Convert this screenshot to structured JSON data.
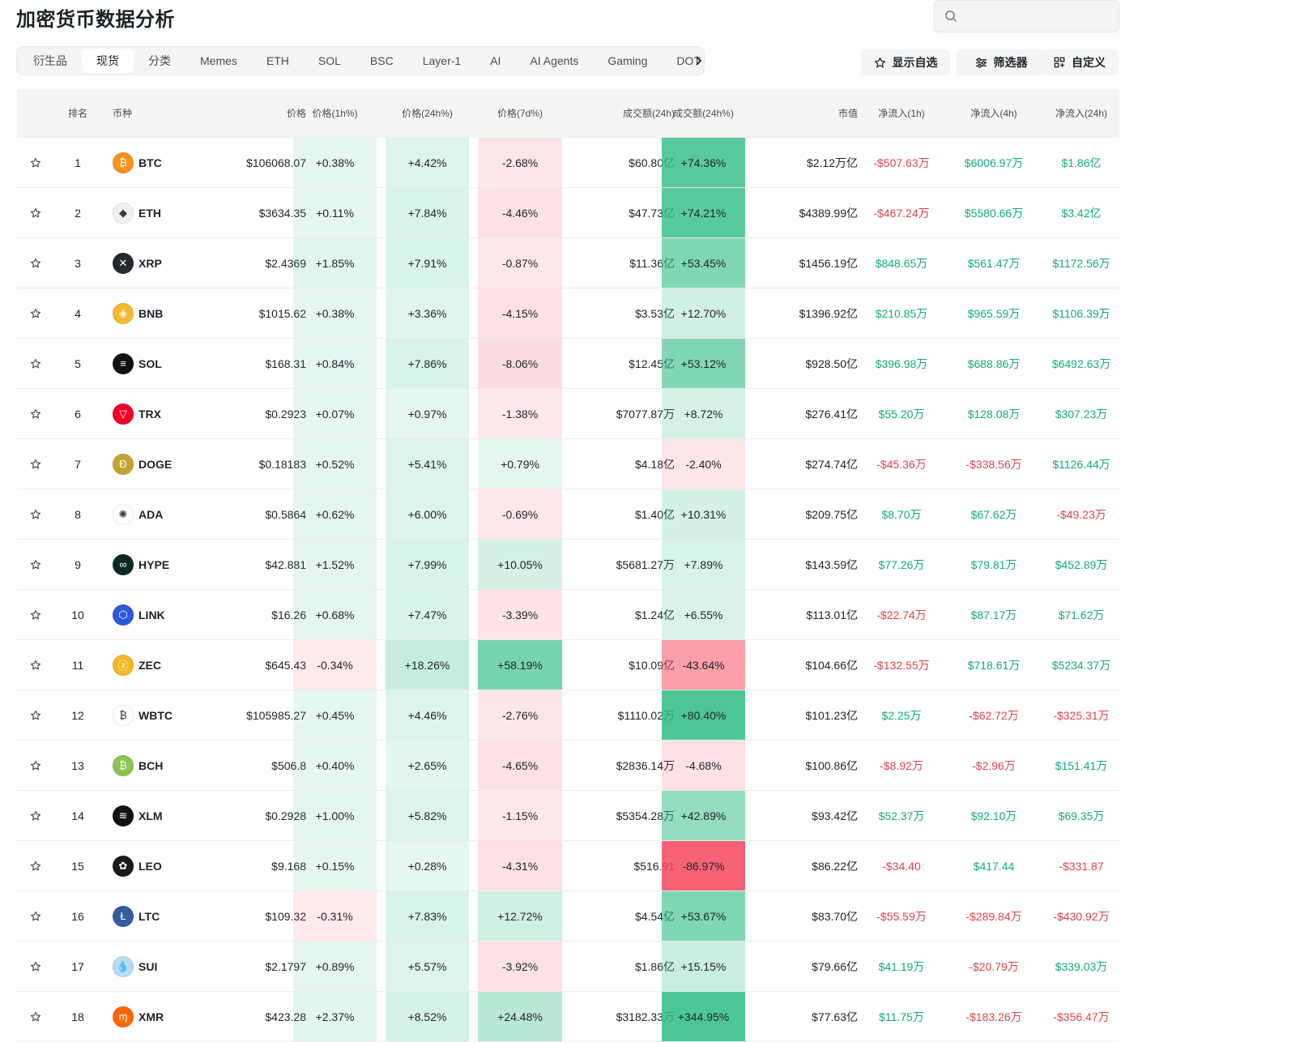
{
  "page": {
    "title": "加密货币数据分析"
  },
  "search": {
    "placeholder": ""
  },
  "tabs": [
    {
      "label": "衍生品",
      "active": false
    },
    {
      "label": "现货",
      "active": true
    },
    {
      "label": "分类",
      "active": false
    },
    {
      "label": "Memes",
      "active": false
    },
    {
      "label": "ETH",
      "active": false
    },
    {
      "label": "SOL",
      "active": false
    },
    {
      "label": "BSC",
      "active": false
    },
    {
      "label": "Layer-1",
      "active": false
    },
    {
      "label": "AI",
      "active": false
    },
    {
      "label": "AI Agents",
      "active": false
    },
    {
      "label": "Gaming",
      "active": false
    },
    {
      "label": "DOT",
      "active": false
    }
  ],
  "toolbar": {
    "watchlist_label": "显示自选",
    "filter_label": "筛选器",
    "customize_label": "自定义"
  },
  "table": {
    "headers": {
      "rank": "排名",
      "coin": "币种",
      "price": "价格",
      "change_1h": "价格(1h%)",
      "change_24h": "价格(24h%)",
      "change_7d": "价格(7d%)",
      "volume_24h": "成交额(24h)",
      "volume_change_24h": "成交额(24h%)",
      "market_cap": "市值",
      "netflow_1h": "净流入(1h)",
      "netflow_4h": "净流入(4h)",
      "netflow_24h": "净流入(24h)"
    },
    "rows": [
      {
        "rank": "1",
        "symbol": "BTC",
        "icon": "btc-icon",
        "icon_color": "#f7931a",
        "icon_glyph": "₿",
        "price": "$106068.07",
        "h1": "+0.38%",
        "h24": "+4.42%",
        "d7": "-2.68%",
        "vol": "$60.80亿",
        "volp": "+74.36%",
        "mcap": "$2.12万亿",
        "n1": "-$507.63万",
        "n4": "$6006.97万",
        "n24": "$1.86亿"
      },
      {
        "rank": "2",
        "symbol": "ETH",
        "icon": "eth-icon",
        "icon_color": "#f0f1f3",
        "icon_glyph": "◆",
        "price": "$3634.35",
        "h1": "+0.11%",
        "h24": "+7.84%",
        "d7": "-4.46%",
        "vol": "$47.73亿",
        "volp": "+74.21%",
        "mcap": "$4389.99亿",
        "n1": "-$467.24万",
        "n4": "$5580.66万",
        "n24": "$3.42亿"
      },
      {
        "rank": "3",
        "symbol": "XRP",
        "icon": "xrp-icon",
        "icon_color": "#23292f",
        "icon_glyph": "✕",
        "price": "$2.4369",
        "h1": "+1.85%",
        "h24": "+7.91%",
        "d7": "-0.87%",
        "vol": "$11.36亿",
        "volp": "+53.45%",
        "mcap": "$1456.19亿",
        "n1": "$848.65万",
        "n4": "$561.47万",
        "n24": "$1172.56万"
      },
      {
        "rank": "4",
        "symbol": "BNB",
        "icon": "bnb-icon",
        "icon_color": "#f3ba2f",
        "icon_glyph": "◈",
        "price": "$1015.62",
        "h1": "+0.38%",
        "h24": "+3.36%",
        "d7": "-4.15%",
        "vol": "$3.53亿",
        "volp": "+12.70%",
        "mcap": "$1396.92亿",
        "n1": "$210.85万",
        "n4": "$965.59万",
        "n24": "$1106.39万"
      },
      {
        "rank": "5",
        "symbol": "SOL",
        "icon": "sol-icon",
        "icon_color": "#111111",
        "icon_glyph": "≡",
        "price": "$168.31",
        "h1": "+0.84%",
        "h24": "+7.86%",
        "d7": "-8.06%",
        "vol": "$12.45亿",
        "volp": "+53.12%",
        "mcap": "$928.50亿",
        "n1": "$396.98万",
        "n4": "$688.86万",
        "n24": "$6492.63万"
      },
      {
        "rank": "6",
        "symbol": "TRX",
        "icon": "trx-icon",
        "icon_color": "#ef0027",
        "icon_glyph": "▽",
        "price": "$0.2923",
        "h1": "+0.07%",
        "h24": "+0.97%",
        "d7": "-1.38%",
        "vol": "$7077.87万",
        "volp": "+8.72%",
        "mcap": "$276.41亿",
        "n1": "$55.20万",
        "n4": "$128.08万",
        "n24": "$307.23万"
      },
      {
        "rank": "7",
        "symbol": "DOGE",
        "icon": "doge-icon",
        "icon_color": "#c2a633",
        "icon_glyph": "Ð",
        "price": "$0.18183",
        "h1": "+0.52%",
        "h24": "+5.41%",
        "d7": "+0.79%",
        "vol": "$4.18亿",
        "volp": "-2.40%",
        "mcap": "$274.74亿",
        "n1": "-$45.36万",
        "n4": "-$338.56万",
        "n24": "$1126.44万"
      },
      {
        "rank": "8",
        "symbol": "ADA",
        "icon": "ada-icon",
        "icon_color": "#ffffff",
        "icon_glyph": "✺",
        "price": "$0.5864",
        "h1": "+0.62%",
        "h24": "+6.00%",
        "d7": "-0.69%",
        "vol": "$1.40亿",
        "volp": "+10.31%",
        "mcap": "$209.75亿",
        "n1": "$8.70万",
        "n4": "$67.62万",
        "n24": "-$49.23万"
      },
      {
        "rank": "9",
        "symbol": "HYPE",
        "icon": "hype-icon",
        "icon_color": "#0b2a25",
        "icon_glyph": "∞",
        "price": "$42.881",
        "h1": "+1.52%",
        "h24": "+7.99%",
        "d7": "+10.05%",
        "vol": "$5681.27万",
        "volp": "+7.89%",
        "mcap": "$143.59亿",
        "n1": "$77.26万",
        "n4": "$79.81万",
        "n24": "$452.89万"
      },
      {
        "rank": "10",
        "symbol": "LINK",
        "icon": "link-icon",
        "icon_color": "#2a5ada",
        "icon_glyph": "⬡",
        "price": "$16.26",
        "h1": "+0.68%",
        "h24": "+7.47%",
        "d7": "-3.39%",
        "vol": "$1.24亿",
        "volp": "+6.55%",
        "mcap": "$113.01亿",
        "n1": "-$22.74万",
        "n4": "$87.17万",
        "n24": "$71.62万"
      },
      {
        "rank": "11",
        "symbol": "ZEC",
        "icon": "zec-icon",
        "icon_color": "#f4b728",
        "icon_glyph": "ⓩ",
        "price": "$645.43",
        "h1": "-0.34%",
        "h24": "+18.26%",
        "d7": "+58.19%",
        "vol": "$10.09亿",
        "volp": "-43.64%",
        "mcap": "$104.66亿",
        "n1": "-$132.55万",
        "n4": "$718.61万",
        "n24": "$5234.37万"
      },
      {
        "rank": "12",
        "symbol": "WBTC",
        "icon": "wbtc-icon",
        "icon_color": "#ffffff",
        "icon_glyph": "₿",
        "price": "$105985.27",
        "h1": "+0.45%",
        "h24": "+4.46%",
        "d7": "-2.76%",
        "vol": "$1110.02万",
        "volp": "+80.40%",
        "mcap": "$101.23亿",
        "n1": "$2.25万",
        "n4": "-$62.72万",
        "n24": "-$325.31万"
      },
      {
        "rank": "13",
        "symbol": "BCH",
        "icon": "bch-icon",
        "icon_color": "#8dc351",
        "icon_glyph": "₿",
        "price": "$506.8",
        "h1": "+0.40%",
        "h24": "+2.65%",
        "d7": "-4.65%",
        "vol": "$2836.14万",
        "volp": "-4.68%",
        "mcap": "$100.86亿",
        "n1": "-$8.92万",
        "n4": "-$2.96万",
        "n24": "$151.41万"
      },
      {
        "rank": "14",
        "symbol": "XLM",
        "icon": "xlm-icon",
        "icon_color": "#111111",
        "icon_glyph": "≋",
        "price": "$0.2928",
        "h1": "+1.00%",
        "h24": "+5.82%",
        "d7": "-1.15%",
        "vol": "$5354.28万",
        "volp": "+42.89%",
        "mcap": "$93.42亿",
        "n1": "$52.37万",
        "n4": "$92.10万",
        "n24": "$69.35万"
      },
      {
        "rank": "15",
        "symbol": "LEO",
        "icon": "leo-icon",
        "icon_color": "#1a1a1a",
        "icon_glyph": "✿",
        "price": "$9.168",
        "h1": "+0.15%",
        "h24": "+0.28%",
        "d7": "-4.31%",
        "vol": "$516.91",
        "volp": "-86.97%",
        "mcap": "$86.22亿",
        "n1": "-$34.40",
        "n4": "$417.44",
        "n24": "-$331.87"
      },
      {
        "rank": "16",
        "symbol": "LTC",
        "icon": "ltc-icon",
        "icon_color": "#345d9d",
        "icon_glyph": "Ł",
        "price": "$109.32",
        "h1": "-0.31%",
        "h24": "+7.83%",
        "d7": "+12.72%",
        "vol": "$4.54亿",
        "volp": "+53.67%",
        "mcap": "$83.70亿",
        "n1": "-$55.59万",
        "n4": "-$289.84万",
        "n24": "-$430.92万"
      },
      {
        "rank": "17",
        "symbol": "SUI",
        "icon": "sui-icon",
        "icon_color": "#b9dcf5",
        "icon_glyph": "💧",
        "price": "$2.1797",
        "h1": "+0.89%",
        "h24": "+5.57%",
        "d7": "-3.92%",
        "vol": "$1.86亿",
        "volp": "+15.15%",
        "mcap": "$79.66亿",
        "n1": "$41.19万",
        "n4": "-$20.79万",
        "n24": "$339.03万"
      },
      {
        "rank": "18",
        "symbol": "XMR",
        "icon": "xmr-icon",
        "icon_color": "#ff6600",
        "icon_glyph": "ɱ",
        "price": "$423.28",
        "h1": "+2.37%",
        "h24": "+8.52%",
        "d7": "+24.48%",
        "vol": "$3182.33万",
        "volp": "+344.95%",
        "mcap": "$77.63亿",
        "n1": "$11.75万",
        "n4": "-$183.26万",
        "n24": "-$356.47万"
      }
    ]
  }
}
